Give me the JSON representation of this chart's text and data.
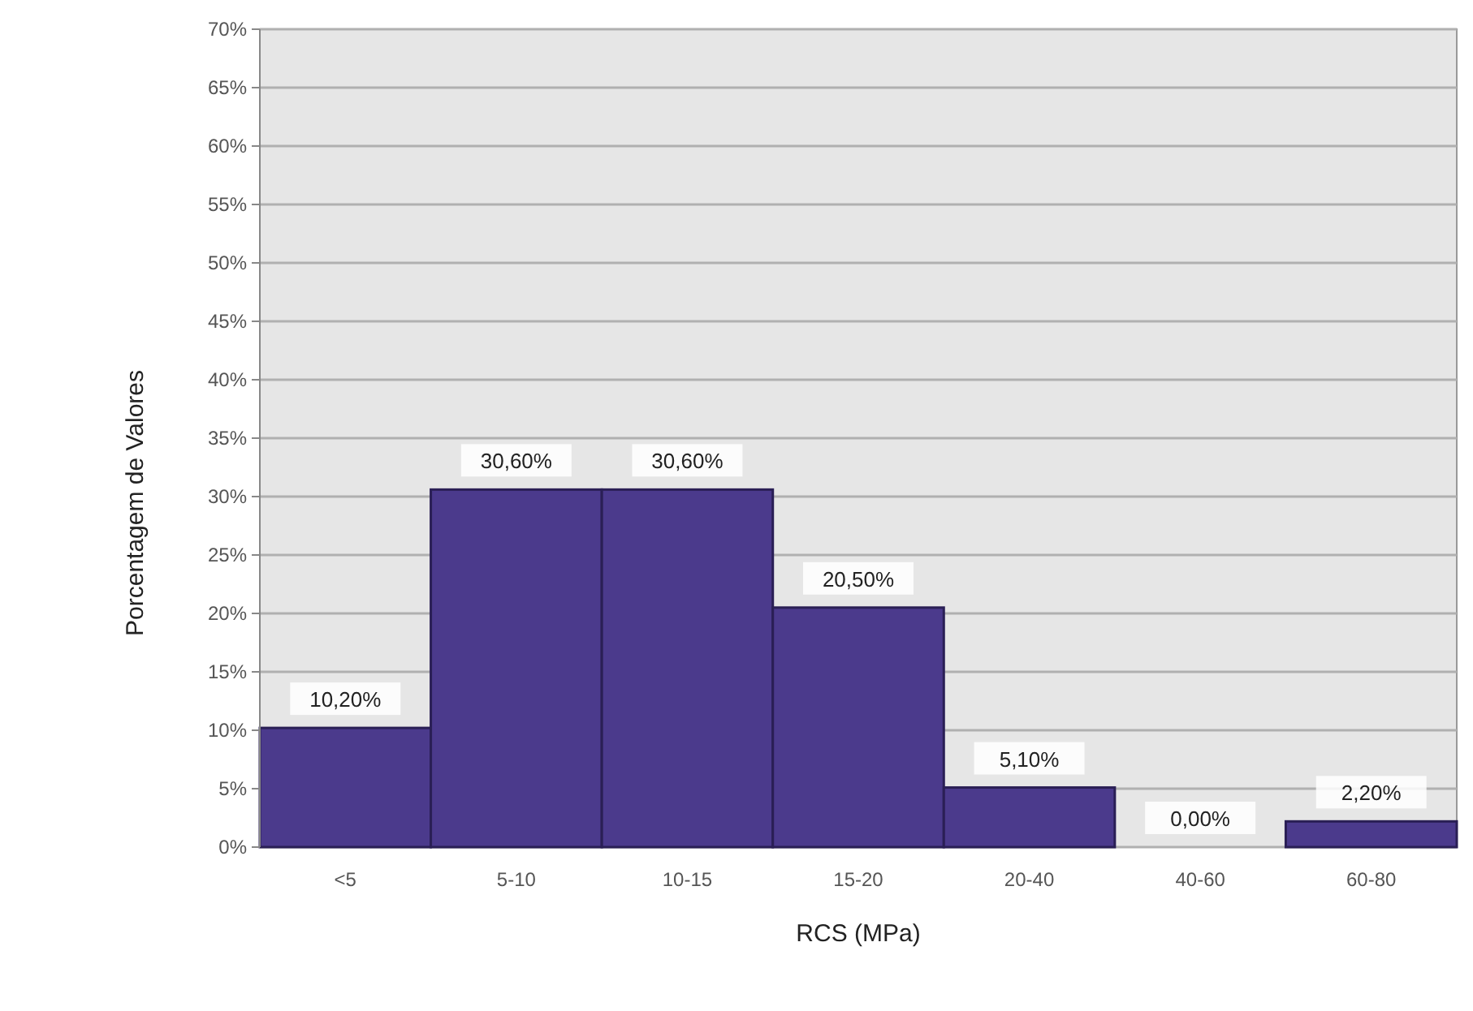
{
  "chart_data": {
    "type": "bar",
    "xlabel": "RCS (MPa)",
    "ylabel": "Porcentagem de Valores",
    "categories": [
      "<5",
      "5-10",
      "10-15",
      "15-20",
      "20-40",
      "40-60",
      "60-80"
    ],
    "values": [
      10.2,
      30.6,
      30.6,
      20.5,
      5.1,
      0,
      2.2
    ],
    "value_labels": [
      "10,20%",
      "30,60%",
      "30,60%",
      "20,50%",
      "5,10%",
      "0,00%",
      "2,20%"
    ],
    "color": "#4b3a8c",
    "grid": "y",
    "ylim": [
      0,
      70
    ],
    "yticks": [
      {
        "value": 0,
        "label": "0%"
      },
      {
        "value": 5,
        "label": "5%"
      },
      {
        "value": 10,
        "label": "10%"
      },
      {
        "value": 15,
        "label": "15%"
      },
      {
        "value": 20,
        "label": "20%"
      },
      {
        "value": 25,
        "label": "25%"
      },
      {
        "value": 30,
        "label": "30%"
      },
      {
        "value": 35,
        "label": "35%"
      },
      {
        "value": 40,
        "label": "40%"
      },
      {
        "value": 45,
        "label": "45%"
      },
      {
        "value": 50,
        "label": "50%"
      },
      {
        "value": 55,
        "label": "55%"
      },
      {
        "value": 60,
        "label": "60%"
      },
      {
        "value": 65,
        "label": "65%"
      },
      {
        "value": 70,
        "label": "70%"
      }
    ]
  }
}
